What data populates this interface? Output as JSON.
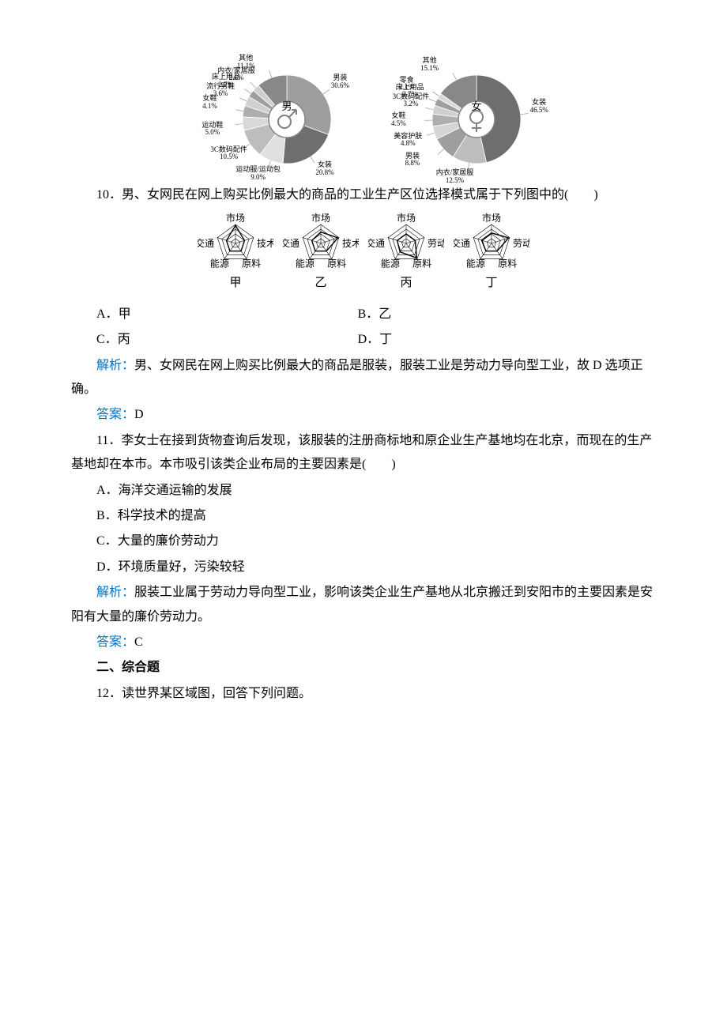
{
  "pie_charts": {
    "male": {
      "center_label": "男",
      "colors": {
        "ring_stroke": "#9e9e9e",
        "icon": "#808080"
      },
      "slices": [
        {
          "label": "男装",
          "pct": 30.6,
          "color": "#9e9e9e",
          "label_side": "right"
        },
        {
          "label": "女装",
          "pct": 20.8,
          "color": "#6e6e6e",
          "label_side": "bottom"
        },
        {
          "label": "运动服/运动包",
          "pct": 9.0,
          "color": "#e0e0e0",
          "label_side": "bottom-left"
        },
        {
          "label": "3C数码配件",
          "pct": 10.5,
          "color": "#bdbdbd",
          "label_side": "left"
        },
        {
          "label": "运动鞋",
          "pct": 5.0,
          "color": "#d9d9d9",
          "label_side": "left"
        },
        {
          "label": "女鞋",
          "pct": 4.1,
          "color": "#aeaeae",
          "label_side": "left"
        },
        {
          "label": "流行男鞋",
          "pct": 3.6,
          "color": "#d0d0d0",
          "label_side": "left"
        },
        {
          "label": "床上用品",
          "pct": 2.7,
          "color": "#9e9e9e",
          "label_side": "top-left"
        },
        {
          "label": "内衣/家居服",
          "pct": 2.6,
          "color": "#cfcfcf",
          "label_side": "top-left"
        },
        {
          "label": "其他",
          "pct": 11.1,
          "color": "#888888",
          "label_side": "top"
        }
      ]
    },
    "female": {
      "center_label": "女",
      "colors": {
        "ring_stroke": "#9e9e9e",
        "icon": "#808080"
      },
      "slices": [
        {
          "label": "女装",
          "pct": 46.5,
          "color": "#6e6e6e",
          "label_side": "right"
        },
        {
          "label": "内衣/家居服",
          "pct": 12.5,
          "color": "#bdbdbd",
          "label_side": "bottom"
        },
        {
          "label": "男装",
          "pct": 8.8,
          "color": "#9e9e9e",
          "label_side": "bottom-left"
        },
        {
          "label": "美容护肤",
          "pct": 4.8,
          "color": "#d5d5d5",
          "label_side": "left"
        },
        {
          "label": "女鞋",
          "pct": 4.5,
          "color": "#aeaeae",
          "label_side": "left"
        },
        {
          "label": "3C数码配件",
          "pct": 3.2,
          "color": "#cfcfcf",
          "label_side": "left"
        },
        {
          "label": "床上用品",
          "pct": 2.7,
          "color": "#9e9e9e",
          "label_side": "top-left"
        },
        {
          "label": "零食",
          "pct": 2.1,
          "color": "#d9d9d9",
          "label_side": "top-left"
        },
        {
          "label": "其他",
          "pct": 15.1,
          "color": "#888888",
          "label_side": "top"
        }
      ]
    }
  },
  "q10": {
    "stem": "10．男、女网民在网上购买比例最大的商品的工业生产区位选择模式属于下列图中的(　　)",
    "radars": {
      "axes5": [
        "市场",
        "技术",
        "原料",
        "能源",
        "交通"
      ],
      "axes5_labor": [
        "市场",
        "劳动力",
        "原料",
        "能源",
        "交通"
      ],
      "items": [
        {
          "key": "甲",
          "axes": "axes5",
          "values": [
            0.95,
            0.5,
            0.5,
            0.5,
            0.5
          ]
        },
        {
          "key": "乙",
          "axes": "axes5",
          "values": [
            0.6,
            0.95,
            0.5,
            0.5,
            0.5
          ]
        },
        {
          "key": "丙",
          "axes": "axes5_labor",
          "values": [
            0.5,
            0.5,
            0.95,
            0.55,
            0.5
          ]
        },
        {
          "key": "丁",
          "axes": "axes5_labor",
          "values": [
            0.55,
            0.95,
            0.5,
            0.5,
            0.55
          ]
        }
      ],
      "style": {
        "stroke": "#000000",
        "fill": "none",
        "grid_stroke": "#000000",
        "levels": 4,
        "fontsize": 13
      }
    },
    "options": {
      "A": "甲",
      "B": "乙",
      "C": "丙",
      "D": "丁"
    },
    "analysis_label": "解析：",
    "analysis_text": "男、女网民在网上购买比例最大的商品是服装，服装工业是劳动力导向型工业，故 D 选项正确。",
    "answer_label": "答案：",
    "answer_text": "D"
  },
  "q11": {
    "stem1": "11．李女士在接到货物查询后发现，该服装的注册商标地和原企业生产基地均在北京，而现在的生产基地却在本市。本市吸引该类企业布局的主要因素是(　　)",
    "options": {
      "A": "海洋交通运输的发展",
      "B": "科学技术的提高",
      "C": "大量的廉价劳动力",
      "D": "环境质量好，污染较轻"
    },
    "analysis_label": "解析：",
    "analysis_text": "服装工业属于劳动力导向型工业，影响该类企业生产基地从北京搬迁到安阳市的主要因素是安阳有大量的廉价劳动力。",
    "answer_label": "答案：",
    "answer_text": "C"
  },
  "section2": {
    "heading": "二、综合题",
    "q12": "12．读世界某区域图，回答下列问题。"
  }
}
